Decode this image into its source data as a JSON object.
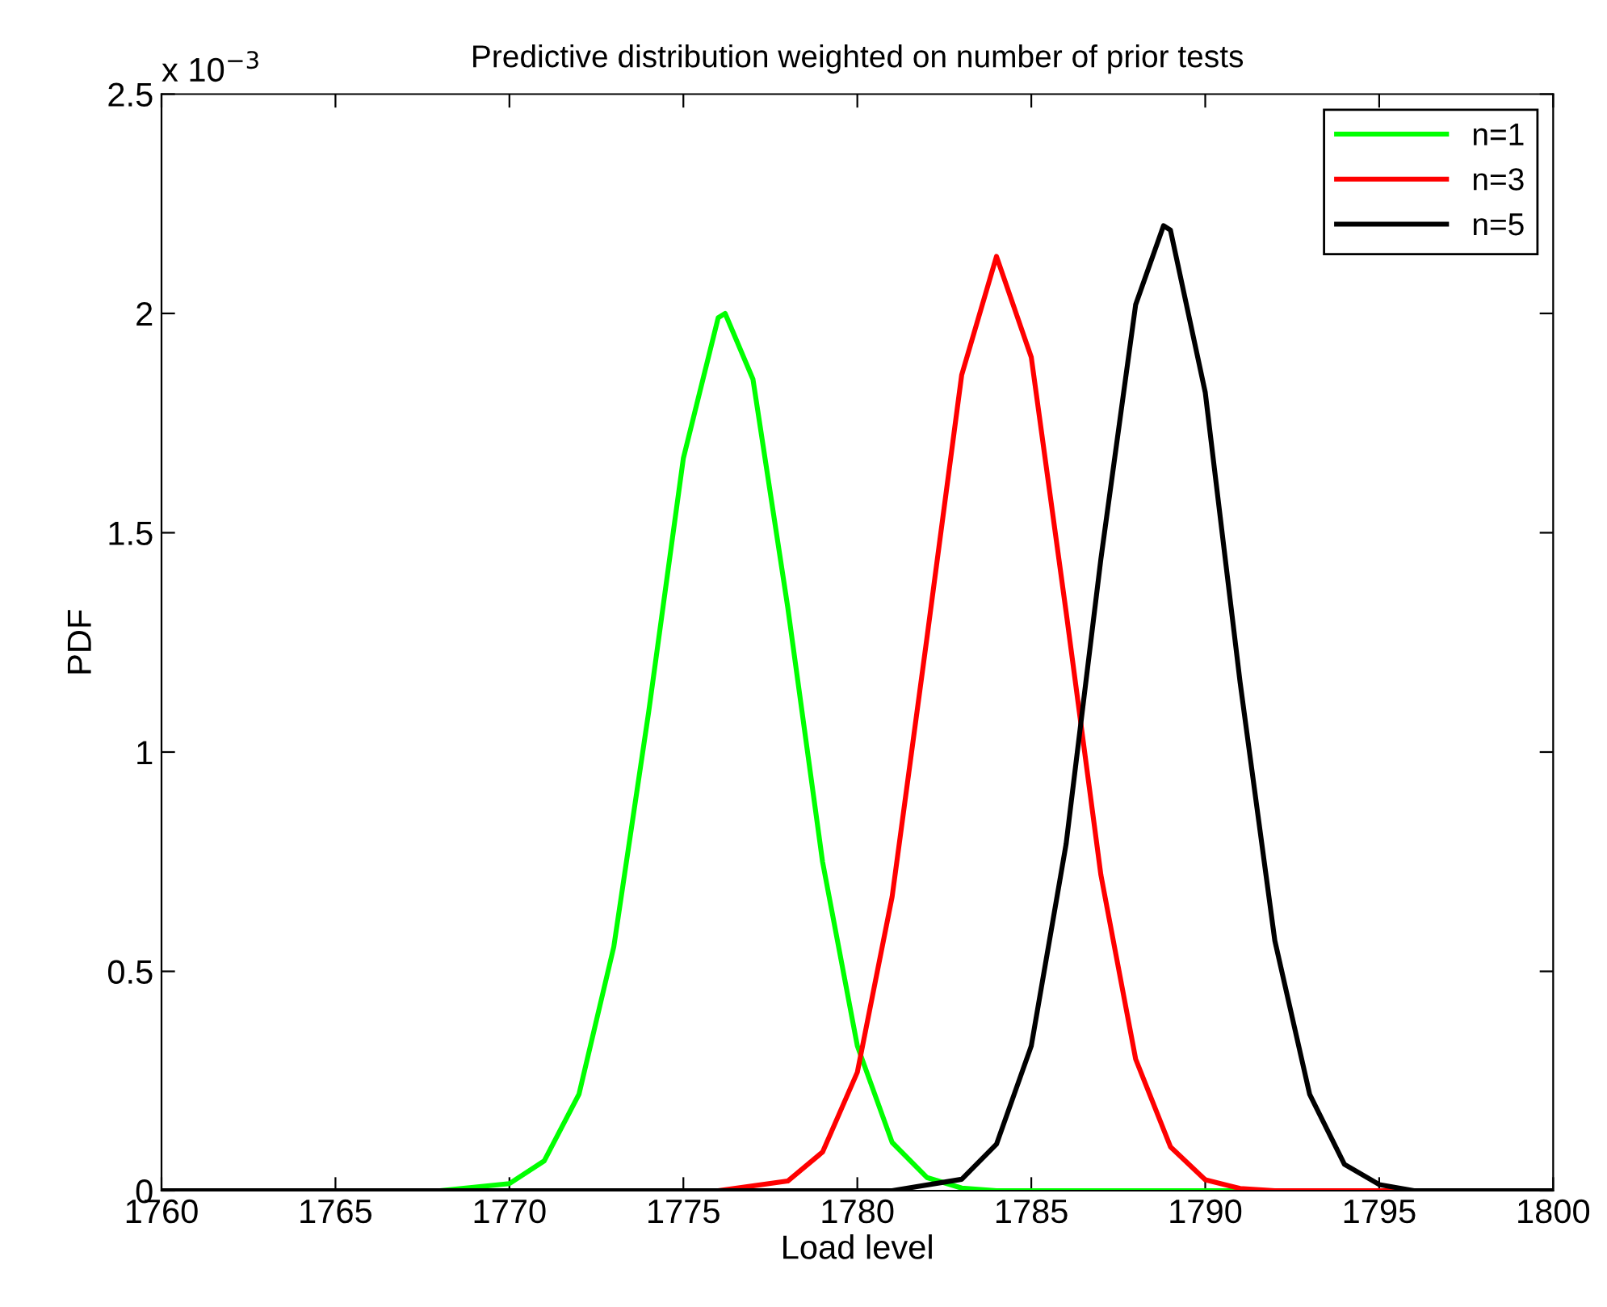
{
  "chart_data": {
    "type": "line",
    "title": "Predictive distribution weighted on number of prior tests",
    "xlabel": "Load level",
    "ylabel": "PDF",
    "annotations": [
      "x 10$^{−3}$"
    ],
    "xlim": [
      1760,
      1800
    ],
    "xticks": [
      1760,
      1765,
      1770,
      1775,
      1780,
      1785,
      1790,
      1795,
      1800
    ],
    "ylim": [
      0,
      2.5
    ],
    "yticks": [
      0,
      0.5,
      1,
      1.5,
      2,
      2.5
    ],
    "grid": false,
    "legend": "top right",
    "marker": "none",
    "line_style": "solid",
    "series": [
      {
        "name": "n=1",
        "color": "#00ff00",
        "x": [
          1760,
          1768,
          1770,
          1771,
          1772,
          1773,
          1774,
          1775,
          1776,
          1776.2,
          1777,
          1778,
          1779,
          1780,
          1781,
          1782,
          1783,
          1784,
          1800
        ],
        "values": [
          0,
          0,
          0.016,
          0.068,
          0.22,
          0.556,
          1.09,
          1.67,
          1.99,
          2.0,
          1.85,
          1.33,
          0.75,
          0.33,
          0.11,
          0.03,
          0.006,
          0,
          0
        ]
      },
      {
        "name": "n=3",
        "color": "#ff0000",
        "x": [
          1760,
          1776,
          1778,
          1779,
          1780,
          1781,
          1782,
          1783,
          1784,
          1785,
          1786,
          1787,
          1788,
          1789,
          1790,
          1791,
          1792,
          1800
        ],
        "values": [
          0,
          0,
          0.022,
          0.088,
          0.27,
          0.67,
          1.26,
          1.86,
          2.13,
          1.9,
          1.32,
          0.72,
          0.3,
          0.1,
          0.025,
          0.005,
          0,
          0
        ]
      },
      {
        "name": "n=5",
        "color": "#000000",
        "x": [
          1760,
          1781,
          1783,
          1784,
          1785,
          1786,
          1787,
          1788,
          1788.8,
          1789,
          1790,
          1791,
          1792,
          1793,
          1794,
          1795,
          1796,
          1800
        ],
        "values": [
          0,
          0,
          0.026,
          0.106,
          0.33,
          0.79,
          1.44,
          2.02,
          2.2,
          2.19,
          1.82,
          1.16,
          0.57,
          0.22,
          0.06,
          0.014,
          0,
          0
        ]
      }
    ]
  }
}
